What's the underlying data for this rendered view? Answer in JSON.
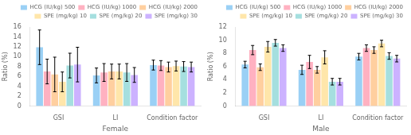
{
  "chart_data": [
    {
      "type": "bar",
      "xlabel": "Female",
      "ylabel": "Ratio (%)",
      "categories": [
        "GSI",
        "LI",
        "Condition factor"
      ],
      "series": [
        {
          "name": "HCG (IU/kg) 500",
          "values": [
            11.9,
            6.2,
            8.3
          ],
          "errors": [
            3.5,
            1.5,
            1.0
          ]
        },
        {
          "name": "HCG (IU/kg) 1000",
          "values": [
            7.0,
            6.8,
            8.2
          ],
          "errors": [
            2.5,
            1.8,
            1.0
          ]
        },
        {
          "name": "HCG (IU/kg) 2000",
          "values": [
            6.4,
            7.0,
            7.9
          ],
          "errors": [
            3.5,
            1.5,
            1.0
          ]
        },
        {
          "name": "SPE (mg/kg) 10",
          "values": [
            4.9,
            7.0,
            8.1
          ],
          "errors": [
            2.0,
            1.5,
            1.0
          ]
        },
        {
          "name": "SPE (mg/kg) 20",
          "values": [
            8.2,
            6.8,
            8.0
          ],
          "errors": [
            2.5,
            1.8,
            1.0
          ]
        },
        {
          "name": "SPE (mg/kg) 30",
          "values": [
            8.4,
            6.3,
            7.9
          ],
          "errors": [
            3.5,
            1.5,
            1.0
          ]
        }
      ],
      "ylim": [
        0,
        16
      ],
      "yticks": [
        0,
        2,
        4,
        6,
        8,
        10,
        12,
        14,
        16
      ],
      "grid": false,
      "legend": "upper right"
    },
    {
      "type": "bar",
      "xlabel": "Male",
      "ylabel": "Ratio (%)",
      "categories": [
        "GSI",
        "LI",
        "Condition factor"
      ],
      "series": [
        {
          "name": "HCG (IU/kg) 500",
          "values": [
            6.3,
            5.5,
            7.5
          ],
          "errors": [
            0.5,
            0.7,
            0.5
          ]
        },
        {
          "name": "HCG (IU/kg) 1000",
          "values": [
            8.5,
            6.7,
            8.8
          ],
          "errors": [
            0.7,
            1.0,
            0.5
          ]
        },
        {
          "name": "HCG (IU/kg) 2000",
          "values": [
            5.9,
            5.5,
            8.5
          ],
          "errors": [
            0.5,
            0.5,
            0.5
          ]
        },
        {
          "name": "SPE (mg/kg) 10",
          "values": [
            9.0,
            7.4,
            9.5
          ],
          "errors": [
            0.8,
            1.0,
            0.5
          ]
        },
        {
          "name": "SPE (mg/kg) 20",
          "values": [
            9.6,
            3.7,
            7.6
          ],
          "errors": [
            0.5,
            0.5,
            0.5
          ]
        },
        {
          "name": "SPE (mg/kg) 30",
          "values": [
            8.8,
            3.7,
            7.2
          ],
          "errors": [
            0.5,
            0.5,
            0.5
          ]
        }
      ],
      "ylim": [
        0,
        12
      ],
      "yticks": [
        0,
        2,
        4,
        6,
        8,
        10,
        12
      ],
      "grid": false,
      "legend": "upper right"
    }
  ]
}
